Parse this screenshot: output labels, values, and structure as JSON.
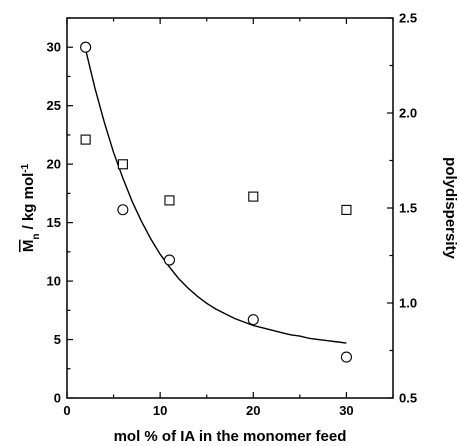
{
  "chart_data": {
    "type": "scatter",
    "xlabel": "mol % of IA in the monomer feed",
    "ylabel_left": {
      "main": "M",
      "sub": "n",
      "rest": " / kg mol",
      "sup": "-1"
    },
    "ylabel_right": "polydispersity",
    "x_range": [
      0,
      35
    ],
    "y_left_range": [
      0,
      32.5
    ],
    "y_right_range": [
      0.5,
      2.5
    ],
    "x_ticks": [
      "0",
      "10",
      "20",
      "30"
    ],
    "y_left_ticks": [
      "0",
      "5",
      "10",
      "15",
      "20",
      "25",
      "30"
    ],
    "y_right_ticks": [
      "0.5",
      "1.0",
      "1.5",
      "2.0",
      "2.5"
    ],
    "grid": false,
    "legend": "none",
    "series": [
      {
        "marker": "circle",
        "axis": "left",
        "x": [
          2,
          6,
          11,
          20,
          30
        ],
        "y": [
          30.0,
          16.1,
          11.8,
          6.7,
          3.5
        ]
      },
      {
        "marker": "square",
        "axis": "right",
        "x": [
          2,
          6,
          11,
          20,
          30
        ],
        "y": [
          1.86,
          1.73,
          1.54,
          1.56,
          1.49
        ]
      }
    ],
    "fit_curve": {
      "axis": "left",
      "x": [
        2,
        3,
        4,
        5,
        6,
        7,
        8,
        9,
        10,
        11,
        12,
        13,
        14,
        15,
        16,
        17,
        18,
        19,
        20,
        21,
        22,
        23,
        24,
        25,
        26,
        27,
        28,
        29,
        30
      ],
      "y": [
        29.8,
        26.5,
        23.6,
        21.0,
        18.8,
        16.8,
        15.1,
        13.6,
        12.3,
        11.2,
        10.2,
        9.4,
        8.7,
        8.1,
        7.6,
        7.2,
        6.8,
        6.5,
        6.2,
        6.0,
        5.8,
        5.6,
        5.4,
        5.3,
        5.1,
        5.0,
        4.9,
        4.8,
        4.7
      ]
    }
  }
}
